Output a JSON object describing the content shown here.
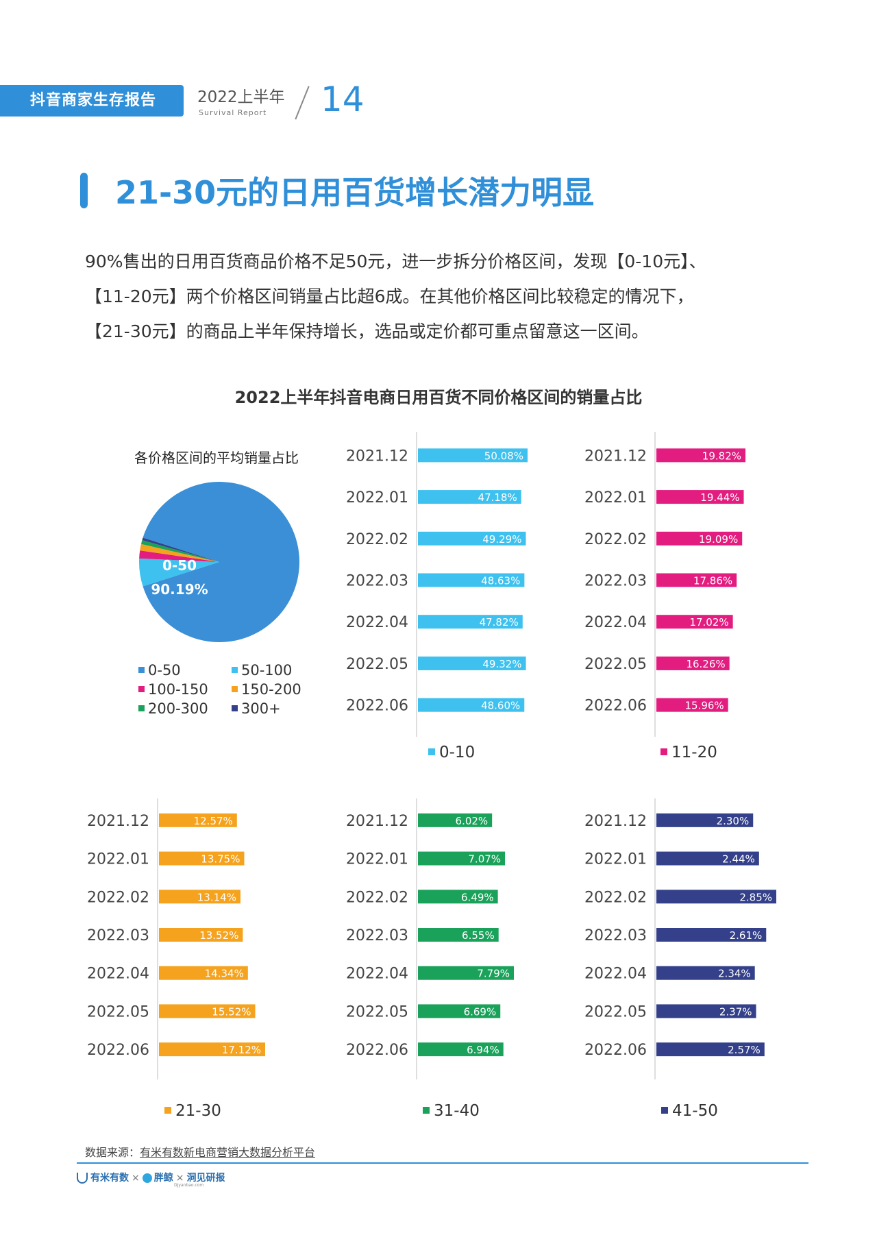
{
  "header": {
    "report_title": "抖音商家生存报告",
    "period": "2022上半年",
    "period_en": "Survival Report",
    "page_number": "14"
  },
  "page_title": "21-30元的日用百货增长潜力明显",
  "paragraph": [
    "90%售出的日用百货商品价格不足50元，进一步拆分价格区间，发现【0-10元】、",
    "【11-20元】两个价格区间销量占比超6成。在其他价格区间比较稳定的情况下，",
    "【21-30元】的商品上半年保持增长，选品或定价都可重点留意这一区间。"
  ],
  "chart_title": "2022上半年抖音电商日用百货不同价格区间的销量占比",
  "chart_data": [
    {
      "type": "pie",
      "title": "各价格区间的平均销量占比",
      "categories": [
        "0-50",
        "50-100",
        "100-150",
        "150-200",
        "200-300",
        "300+"
      ],
      "values": [
        90.19,
        5.6,
        1.6,
        1.3,
        0.8,
        0.51
      ],
      "colors": [
        "#3a8fd6",
        "#3ec1ef",
        "#e31c80",
        "#f5a31e",
        "#1aa25a",
        "#34418a"
      ],
      "labeled_slice": {
        "category": "0-50",
        "value_label": "90.19%"
      },
      "legend": "bottom"
    },
    {
      "type": "bar",
      "orientation": "horizontal",
      "series_name": "0-10",
      "color": "#3ec1ef",
      "categories": [
        "2021.12",
        "2022.01",
        "2022.02",
        "2022.03",
        "2022.04",
        "2022.05",
        "2022.06"
      ],
      "values": [
        50.08,
        47.18,
        49.29,
        48.63,
        47.82,
        49.32,
        48.6
      ],
      "labels": [
        "50.08%",
        "47.18%",
        "49.29%",
        "48.63%",
        "47.82%",
        "49.32%",
        "48.60%"
      ]
    },
    {
      "type": "bar",
      "orientation": "horizontal",
      "series_name": "11-20",
      "color": "#e31c80",
      "categories": [
        "2021.12",
        "2022.01",
        "2022.02",
        "2022.03",
        "2022.04",
        "2022.05",
        "2022.06"
      ],
      "values": [
        19.82,
        19.44,
        19.09,
        17.86,
        17.02,
        16.26,
        15.96
      ],
      "labels": [
        "19.82%",
        "19.44%",
        "19.09%",
        "17.86%",
        "17.02%",
        "16.26%",
        "15.96%"
      ]
    },
    {
      "type": "bar",
      "orientation": "horizontal",
      "series_name": "21-30",
      "color": "#f5a31e",
      "categories": [
        "2021.12",
        "2022.01",
        "2022.02",
        "2022.03",
        "2022.04",
        "2022.05",
        "2022.06"
      ],
      "values": [
        12.57,
        13.75,
        13.14,
        13.52,
        14.34,
        15.52,
        17.12
      ],
      "labels": [
        "12.57%",
        "13.75%",
        "13.14%",
        "13.52%",
        "14.34%",
        "15.52%",
        "17.12%"
      ]
    },
    {
      "type": "bar",
      "orientation": "horizontal",
      "series_name": "31-40",
      "color": "#1aa25a",
      "categories": [
        "2021.12",
        "2022.01",
        "2022.02",
        "2022.03",
        "2022.04",
        "2022.05",
        "2022.06"
      ],
      "values": [
        6.02,
        7.07,
        6.49,
        6.55,
        7.79,
        6.69,
        6.94
      ],
      "labels": [
        "6.02%",
        "7.07%",
        "6.49%",
        "6.55%",
        "7.79%",
        "6.69%",
        "6.94%"
      ]
    },
    {
      "type": "bar",
      "orientation": "horizontal",
      "series_name": "41-50",
      "color": "#34418a",
      "categories": [
        "2021.12",
        "2022.01",
        "2022.02",
        "2022.03",
        "2022.04",
        "2022.05",
        "2022.06"
      ],
      "values": [
        2.3,
        2.44,
        2.85,
        2.61,
        2.34,
        2.37,
        2.57
      ],
      "labels": [
        "2.30%",
        "2.44%",
        "2.85%",
        "2.61%",
        "2.34%",
        "2.37%",
        "2.57%"
      ]
    }
  ],
  "footer": {
    "source_label": "数据来源：",
    "source_name": "有米有数新电商营销大数据分析平台",
    "logo_1": "有米有数",
    "logo_2": "胖鲸",
    "logo_3": "洞见研报",
    "logo_3_sub": "DJyanbao.com",
    "separator": "×"
  }
}
